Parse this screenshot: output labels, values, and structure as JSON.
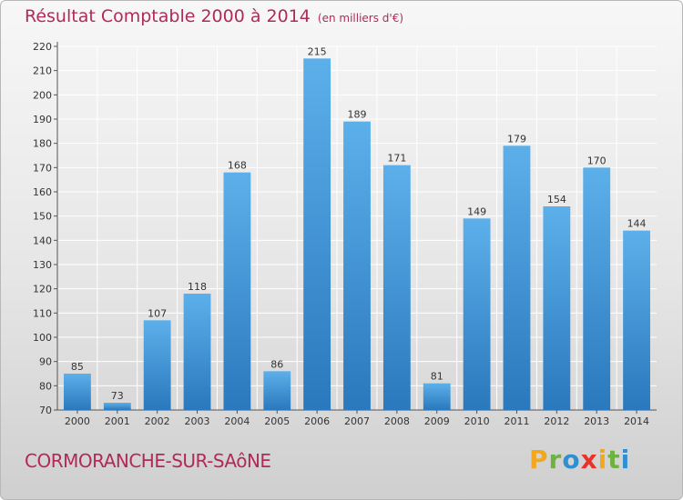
{
  "header": {
    "title": "Résultat Comptable 2000 à 2014",
    "subtitle": "(en milliers d'€)"
  },
  "footer": {
    "commune": "CORMORANCHE-SUR-SAôNE",
    "brand_letters": [
      "P",
      "r",
      "o",
      "x",
      "i",
      "t",
      "i"
    ],
    "brand_colors": [
      "#f2a81d",
      "#6cb33f",
      "#2f8fd0",
      "#e8332a",
      "#f2a81d",
      "#6cb33f",
      "#2f8fd0"
    ]
  },
  "colors": {
    "bar_light": "#5cb0ea",
    "bar_dark": "#2a78bd",
    "grid": "#ffffff",
    "title": "#b02a5a"
  },
  "chart_data": {
    "type": "bar",
    "title": "Résultat Comptable 2000 à 2014",
    "subtitle": "(en milliers d'€)",
    "xlabel": "",
    "ylabel": "",
    "categories": [
      "2000",
      "2001",
      "2002",
      "2003",
      "2004",
      "2005",
      "2006",
      "2007",
      "2008",
      "2009",
      "2010",
      "2011",
      "2012",
      "2013",
      "2014"
    ],
    "values": [
      85,
      73,
      107,
      118,
      168,
      86,
      215,
      189,
      171,
      81,
      149,
      179,
      154,
      170,
      144
    ],
    "ylim": [
      70,
      220
    ],
    "yticks": [
      70,
      80,
      90,
      100,
      110,
      120,
      130,
      140,
      150,
      160,
      170,
      180,
      190,
      200,
      210,
      220
    ],
    "grid": true,
    "show_value_labels": true
  }
}
